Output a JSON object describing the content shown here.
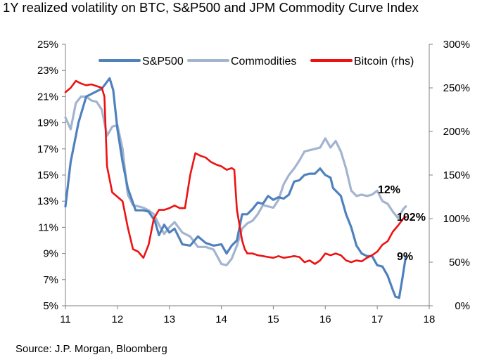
{
  "title": "1Y realized volatility on BTC, S&P500 and JPM Commodity Curve Index",
  "source": "Source: J.P. Morgan, Bloomberg",
  "colors": {
    "sp500": "#4f81bd",
    "commodities": "#a3b4cf",
    "bitcoin": "#ee1111",
    "axis": "#808080"
  },
  "chart_data": {
    "type": "line",
    "title": "1Y realized volatility on BTC, S&P500 and JPM Commodity Curve Index",
    "x_ticks": [
      "11",
      "12",
      "13",
      "14",
      "15",
      "16",
      "17",
      "18"
    ],
    "xlim": [
      11,
      18
    ],
    "y_left_ticks": [
      "25%",
      "23%",
      "21%",
      "19%",
      "17%",
      "15%",
      "13%",
      "11%",
      "9%",
      "7%",
      "5%"
    ],
    "ylim_left": [
      5,
      25
    ],
    "y_right_ticks": [
      "300%",
      "250%",
      "200%",
      "150%",
      "100%",
      "50%",
      "0%"
    ],
    "ylim_right": [
      0,
      300
    ],
    "legend_position": "top",
    "series": [
      {
        "name": "S&P500",
        "axis": "left",
        "end_label": "9%",
        "points": [
          [
            11.0,
            12.6
          ],
          [
            11.1,
            16.0
          ],
          [
            11.25,
            19.0
          ],
          [
            11.4,
            21.0
          ],
          [
            11.55,
            21.3
          ],
          [
            11.7,
            21.6
          ],
          [
            11.85,
            22.4
          ],
          [
            11.92,
            21.5
          ],
          [
            12.0,
            18.5
          ],
          [
            12.1,
            16.0
          ],
          [
            12.2,
            14.0
          ],
          [
            12.35,
            12.3
          ],
          [
            12.5,
            12.3
          ],
          [
            12.6,
            12.2
          ],
          [
            12.72,
            11.5
          ],
          [
            12.8,
            10.4
          ],
          [
            12.9,
            11.2
          ],
          [
            13.0,
            10.6
          ],
          [
            13.1,
            10.9
          ],
          [
            13.25,
            9.7
          ],
          [
            13.4,
            9.6
          ],
          [
            13.55,
            10.3
          ],
          [
            13.7,
            9.8
          ],
          [
            13.85,
            9.6
          ],
          [
            14.0,
            9.7
          ],
          [
            14.1,
            9.0
          ],
          [
            14.2,
            9.6
          ],
          [
            14.3,
            10.0
          ],
          [
            14.4,
            12.0
          ],
          [
            14.5,
            12.0
          ],
          [
            14.6,
            12.4
          ],
          [
            14.7,
            12.9
          ],
          [
            14.8,
            12.8
          ],
          [
            14.9,
            13.4
          ],
          [
            15.0,
            13.1
          ],
          [
            15.1,
            13.3
          ],
          [
            15.2,
            13.2
          ],
          [
            15.3,
            13.5
          ],
          [
            15.4,
            14.5
          ],
          [
            15.5,
            14.6
          ],
          [
            15.6,
            15.0
          ],
          [
            15.7,
            15.1
          ],
          [
            15.8,
            15.1
          ],
          [
            15.9,
            15.5
          ],
          [
            16.0,
            15.0
          ],
          [
            16.1,
            14.8
          ],
          [
            16.15,
            14.0
          ],
          [
            16.3,
            13.4
          ],
          [
            16.4,
            12.0
          ],
          [
            16.5,
            11.0
          ],
          [
            16.6,
            9.6
          ],
          [
            16.7,
            9.0
          ],
          [
            16.8,
            8.8
          ],
          [
            16.9,
            8.8
          ],
          [
            17.0,
            8.1
          ],
          [
            17.1,
            8.0
          ],
          [
            17.2,
            7.3
          ],
          [
            17.3,
            6.2
          ],
          [
            17.35,
            5.7
          ],
          [
            17.42,
            5.6
          ],
          [
            17.48,
            7.0
          ],
          [
            17.55,
            8.8
          ]
        ]
      },
      {
        "name": "Commodities",
        "axis": "left",
        "end_label": "12%",
        "points": [
          [
            11.0,
            19.4
          ],
          [
            11.1,
            18.5
          ],
          [
            11.2,
            20.5
          ],
          [
            11.3,
            21.0
          ],
          [
            11.4,
            21.0
          ],
          [
            11.5,
            20.7
          ],
          [
            11.6,
            20.6
          ],
          [
            11.7,
            20.0
          ],
          [
            11.8,
            18.0
          ],
          [
            11.9,
            18.7
          ],
          [
            12.0,
            18.8
          ],
          [
            12.1,
            17.0
          ],
          [
            12.2,
            13.5
          ],
          [
            12.3,
            12.7
          ],
          [
            12.4,
            12.6
          ],
          [
            12.5,
            12.5
          ],
          [
            12.6,
            12.3
          ],
          [
            12.7,
            12.0
          ],
          [
            12.8,
            11.2
          ],
          [
            12.9,
            10.5
          ],
          [
            13.0,
            11.0
          ],
          [
            13.1,
            11.4
          ],
          [
            13.25,
            10.6
          ],
          [
            13.4,
            10.3
          ],
          [
            13.55,
            9.5
          ],
          [
            13.7,
            9.5
          ],
          [
            13.85,
            9.3
          ],
          [
            14.0,
            8.2
          ],
          [
            14.1,
            8.1
          ],
          [
            14.2,
            8.6
          ],
          [
            14.3,
            9.6
          ],
          [
            14.4,
            10.9
          ],
          [
            14.5,
            11.3
          ],
          [
            14.6,
            11.5
          ],
          [
            14.7,
            12.0
          ],
          [
            14.8,
            12.7
          ],
          [
            14.9,
            12.6
          ],
          [
            15.0,
            12.5
          ],
          [
            15.1,
            13.1
          ],
          [
            15.2,
            14.3
          ],
          [
            15.3,
            15.0
          ],
          [
            15.4,
            15.5
          ],
          [
            15.5,
            16.1
          ],
          [
            15.6,
            16.8
          ],
          [
            15.7,
            16.9
          ],
          [
            15.8,
            17.0
          ],
          [
            15.9,
            17.1
          ],
          [
            16.0,
            17.8
          ],
          [
            16.1,
            17.1
          ],
          [
            16.2,
            17.6
          ],
          [
            16.3,
            16.8
          ],
          [
            16.4,
            15.5
          ],
          [
            16.5,
            13.8
          ],
          [
            16.6,
            13.4
          ],
          [
            16.7,
            13.5
          ],
          [
            16.8,
            13.4
          ],
          [
            16.9,
            13.5
          ],
          [
            17.0,
            13.8
          ],
          [
            17.1,
            13.0
          ],
          [
            17.2,
            12.8
          ],
          [
            17.3,
            12.2
          ],
          [
            17.4,
            11.7
          ],
          [
            17.5,
            12.4
          ],
          [
            17.55,
            12.6
          ]
        ]
      },
      {
        "name": "Bitcoin (rhs)",
        "axis": "right",
        "end_label": "102%",
        "points": [
          [
            11.0,
            245
          ],
          [
            11.1,
            250
          ],
          [
            11.2,
            258
          ],
          [
            11.3,
            255
          ],
          [
            11.4,
            253
          ],
          [
            11.5,
            254
          ],
          [
            11.6,
            252
          ],
          [
            11.7,
            250
          ],
          [
            11.75,
            240
          ],
          [
            11.8,
            160
          ],
          [
            11.9,
            130
          ],
          [
            12.0,
            125
          ],
          [
            12.1,
            120
          ],
          [
            12.2,
            90
          ],
          [
            12.3,
            65
          ],
          [
            12.4,
            62
          ],
          [
            12.5,
            55
          ],
          [
            12.6,
            70
          ],
          [
            12.7,
            100
          ],
          [
            12.8,
            110
          ],
          [
            12.9,
            110
          ],
          [
            13.0,
            112
          ],
          [
            13.1,
            115
          ],
          [
            13.2,
            112
          ],
          [
            13.3,
            112
          ],
          [
            13.4,
            150
          ],
          [
            13.5,
            175
          ],
          [
            13.6,
            172
          ],
          [
            13.7,
            170
          ],
          [
            13.8,
            165
          ],
          [
            13.9,
            162
          ],
          [
            14.0,
            160
          ],
          [
            14.1,
            156
          ],
          [
            14.2,
            158
          ],
          [
            14.25,
            156
          ],
          [
            14.3,
            110
          ],
          [
            14.4,
            75
          ],
          [
            14.45,
            65
          ],
          [
            14.5,
            60
          ],
          [
            14.6,
            60
          ],
          [
            14.7,
            58
          ],
          [
            14.8,
            57
          ],
          [
            14.9,
            56
          ],
          [
            15.0,
            55
          ],
          [
            15.1,
            57
          ],
          [
            15.2,
            55
          ],
          [
            15.3,
            56
          ],
          [
            15.4,
            57
          ],
          [
            15.5,
            56
          ],
          [
            15.6,
            50
          ],
          [
            15.7,
            52
          ],
          [
            15.8,
            48
          ],
          [
            15.9,
            52
          ],
          [
            16.0,
            60
          ],
          [
            16.1,
            58
          ],
          [
            16.2,
            60
          ],
          [
            16.3,
            58
          ],
          [
            16.4,
            52
          ],
          [
            16.5,
            50
          ],
          [
            16.6,
            52
          ],
          [
            16.7,
            51
          ],
          [
            16.8,
            55
          ],
          [
            16.9,
            58
          ],
          [
            17.0,
            62
          ],
          [
            17.1,
            70
          ],
          [
            17.2,
            74
          ],
          [
            17.3,
            85
          ],
          [
            17.4,
            92
          ],
          [
            17.5,
            100
          ],
          [
            17.55,
            102
          ]
        ]
      }
    ]
  }
}
